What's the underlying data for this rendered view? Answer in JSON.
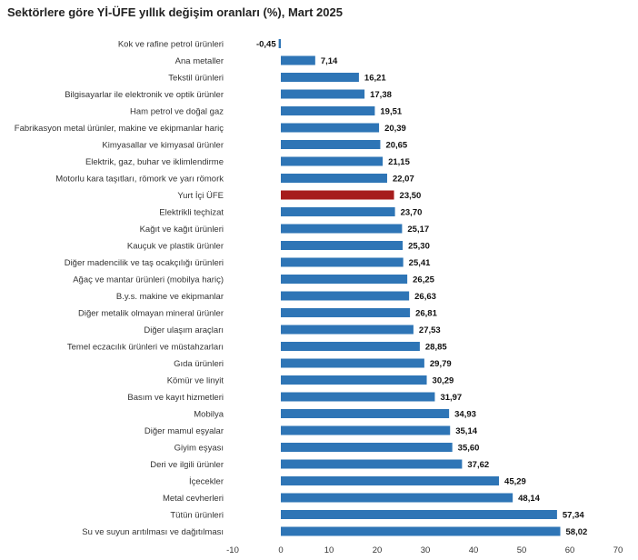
{
  "chart_data": {
    "type": "bar",
    "orientation": "horizontal",
    "title": "Sektörlere göre Yİ-ÜFE yıllık değişim oranları (%), Mart 2025",
    "xlabel": "",
    "ylabel": "",
    "xlim": [
      -10,
      70
    ],
    "xticks": [
      "-10",
      "0",
      "10",
      "20",
      "30",
      "40",
      "50",
      "60",
      "70"
    ],
    "grid": false,
    "legend": "none",
    "colors": {
      "bar": "#2e75b6",
      "highlight": "#a61c1c"
    },
    "highlight_category": "Yurt İçi ÜFE",
    "categories": [
      "Kok ve rafine petrol ürünleri",
      "Ana metaller",
      "Tekstil ürünleri",
      "Bilgisayarlar ile elektronik ve optik ürünler",
      "Ham petrol ve doğal gaz",
      "Fabrikasyon metal ürünler, makine ve ekipmanlar hariç",
      "Kimyasallar ve kimyasal ürünler",
      "Elektrik, gaz, buhar ve iklimlendirme",
      "Motorlu kara taşıtları, römork ve yarı römork",
      "Yurt İçi ÜFE",
      "Elektrikli teçhizat",
      "Kağıt ve kağıt ürünleri",
      "Kauçuk ve plastik ürünler",
      "Diğer madencilik ve taş ocakçılığı ürünleri",
      "Ağaç ve mantar ürünleri (mobilya hariç)",
      "B.y.s. makine ve ekipmanlar",
      "Diğer metalik olmayan mineral ürünler",
      "Diğer ulaşım araçları",
      "Temel eczacılık ürünleri ve müstahzarları",
      "Gıda ürünleri",
      "Kömür ve linyit",
      "Basım ve kayıt hizmetleri",
      "Mobilya",
      "Diğer mamul eşyalar",
      "Giyim eşyası",
      "Deri ve ilgili ürünler",
      "İçecekler",
      "Metal cevherleri",
      "Tütün ürünleri",
      "Su ve suyun arıtılması ve dağıtılması"
    ],
    "values": [
      -0.45,
      7.14,
      16.21,
      17.38,
      19.51,
      20.39,
      20.65,
      21.15,
      22.07,
      23.5,
      23.7,
      25.17,
      25.3,
      25.41,
      26.25,
      26.63,
      26.81,
      27.53,
      28.85,
      29.79,
      30.29,
      31.97,
      34.93,
      35.14,
      35.6,
      37.62,
      45.29,
      48.14,
      57.34,
      58.02
    ],
    "value_labels": [
      "-0,45",
      "7,14",
      "16,21",
      "17,38",
      "19,51",
      "20,39",
      "20,65",
      "21,15",
      "22,07",
      "23,50",
      "23,70",
      "25,17",
      "25,30",
      "25,41",
      "26,25",
      "26,63",
      "26,81",
      "27,53",
      "28,85",
      "29,79",
      "30,29",
      "31,97",
      "34,93",
      "35,14",
      "35,60",
      "37,62",
      "45,29",
      "48,14",
      "57,34",
      "58,02"
    ]
  }
}
